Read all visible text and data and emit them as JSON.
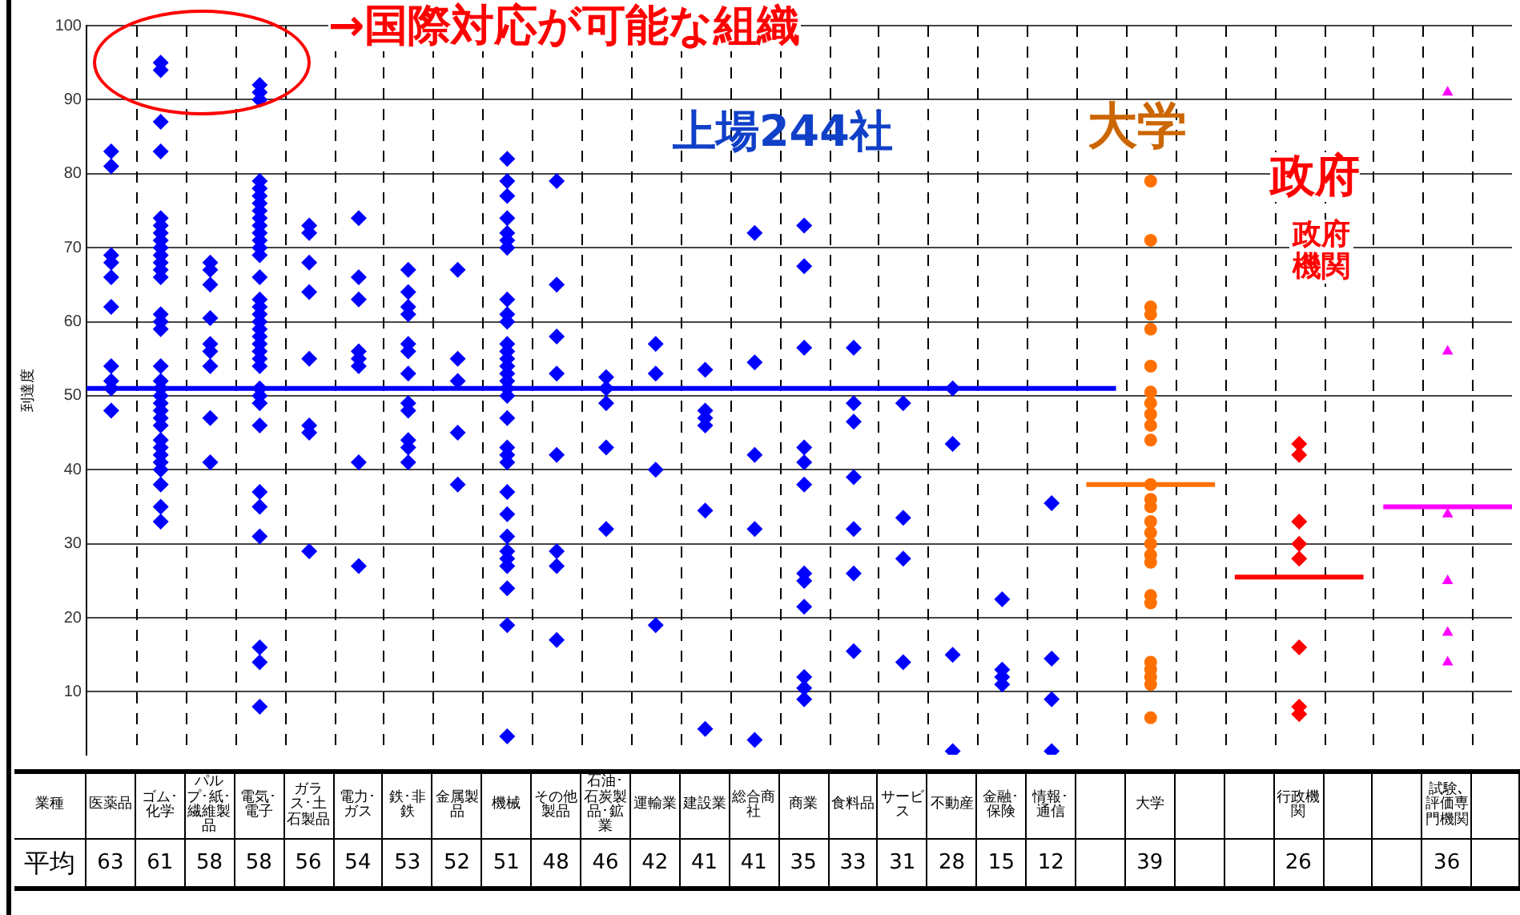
{
  "chart_data": [
    {
      "type": "scatter",
      "ylabel": "到達度",
      "tick_labels": "y",
      "categories": [
        "医薬品",
        "ゴム･化学",
        "パルプ･紙･繊維製品",
        "電気･電子",
        "ガラス･土石製品",
        "電力･ガス",
        "鉄･非鉄",
        "金属製品",
        "機械",
        "その他製品",
        "石油･石炭製品･鉱業",
        "運輸業",
        "建設業",
        "総合商社",
        "商業",
        "食料品",
        "サービス",
        "不動産",
        "金融･保険",
        "情報･通信",
        null,
        "大学",
        null,
        null,
        "行政機関",
        null,
        null,
        "試験､評価専門機関",
        null
      ],
      "ylim": [
        1.5,
        100
      ],
      "yticks": [
        10,
        20,
        30,
        40,
        50,
        60,
        70,
        80,
        90,
        100
      ],
      "grid": true,
      "legend": false,
      "series": [
        {
          "type": "scatter",
          "color": "#0000ff",
          "marker": "diamond",
          "x": [
            "医薬品",
            "医薬品",
            "医薬品",
            "医薬品",
            "医薬品",
            "医薬品",
            "医薬品",
            "医薬品",
            "医薬品",
            "医薬品"
          ],
          "values": [
            83,
            81,
            69,
            68,
            66,
            62,
            54,
            52,
            51,
            48
          ]
        },
        {
          "type": "scatter",
          "color": "#0000ff",
          "marker": "diamond",
          "x": [
            "ゴム･化学",
            "ゴム･化学",
            "ゴム･化学",
            "ゴム･化学",
            "ゴム･化学",
            "ゴム･化学",
            "ゴム･化学",
            "ゴム･化学",
            "ゴム･化学",
            "ゴム･化学",
            "ゴム･化学",
            "ゴム･化学",
            "ゴム･化学",
            "ゴム･化学",
            "ゴム･化学",
            "ゴム･化学",
            "ゴム･化学",
            "ゴム･化学",
            "ゴム･化学",
            "ゴム･化学",
            "ゴム･化学",
            "ゴム･化学",
            "ゴム･化学",
            "ゴム･化学",
            "ゴム･化学",
            "ゴム･化学",
            "ゴム･化学",
            "ゴム･化学",
            "ゴム･化学",
            "ゴム･化学",
            "ゴム･化学",
            "ゴム･化学"
          ],
          "values": [
            95,
            94,
            87,
            83,
            74,
            73,
            72,
            71,
            70,
            69,
            68,
            67,
            66,
            61,
            60,
            59,
            54,
            52,
            51,
            50,
            49,
            48,
            47,
            46,
            44,
            43,
            42,
            41,
            40,
            38,
            35,
            33
          ]
        },
        {
          "type": "scatter",
          "color": "#0000ff",
          "marker": "diamond",
          "x": [
            "パルプ･紙･繊維製品",
            "パルプ･紙･繊維製品",
            "パルプ･紙･繊維製品",
            "パルプ･紙･繊維製品",
            "パルプ･紙･繊維製品",
            "パルプ･紙･繊維製品",
            "パルプ･紙･繊維製品",
            "パルプ･紙･繊維製品",
            "パルプ･紙･繊維製品"
          ],
          "values": [
            68,
            67,
            65,
            60.5,
            57,
            56,
            54,
            47,
            41
          ]
        },
        {
          "type": "scatter",
          "color": "#0000ff",
          "marker": "diamond",
          "x": [
            "電気･電子",
            "電気･電子",
            "電気･電子",
            "電気･電子",
            "電気･電子",
            "電気･電子",
            "電気･電子",
            "電気･電子",
            "電気･電子",
            "電気･電子",
            "電気･電子",
            "電気･電子",
            "電気･電子",
            "電気･電子",
            "電気･電子",
            "電気･電子",
            "電気･電子",
            "電気･電子",
            "電気･電子",
            "電気･電子",
            "電気･電子",
            "電気･電子",
            "電気･電子",
            "電気･電子",
            "電気･電子",
            "電気･電子",
            "電気･電子",
            "電気･電子",
            "電気･電子",
            "電気･電子",
            "電気･電子",
            "電気･電子",
            "電気･電子",
            "電気･電子",
            "電気･電子"
          ],
          "values": [
            92,
            91,
            90,
            79,
            78,
            77,
            76,
            75,
            74,
            73,
            72,
            71,
            70,
            69,
            66,
            63,
            62,
            61,
            60,
            59,
            58,
            57,
            56,
            55,
            54,
            51,
            50,
            49,
            46,
            37,
            35,
            31,
            16,
            14,
            8
          ]
        },
        {
          "type": "scatter",
          "color": "#0000ff",
          "marker": "diamond",
          "x": [
            "ガラス･土石製品",
            "ガラス･土石製品",
            "ガラス･土石製品",
            "ガラス･土石製品",
            "ガラス･土石製品",
            "ガラス･土石製品",
            "ガラス･土石製品",
            "ガラス･土石製品"
          ],
          "values": [
            73,
            72,
            68,
            64,
            55,
            46,
            45,
            29
          ]
        },
        {
          "type": "scatter",
          "color": "#0000ff",
          "marker": "diamond",
          "x": [
            "電力･ガス",
            "電力･ガス",
            "電力･ガス",
            "電力･ガス",
            "電力･ガス",
            "電力･ガス",
            "電力･ガス",
            "電力･ガス"
          ],
          "values": [
            74,
            66,
            63,
            56,
            55,
            54,
            41,
            27
          ]
        },
        {
          "type": "scatter",
          "color": "#0000ff",
          "marker": "diamond",
          "x": [
            "鉄･非鉄",
            "鉄･非鉄",
            "鉄･非鉄",
            "鉄･非鉄",
            "鉄･非鉄",
            "鉄･非鉄",
            "鉄･非鉄",
            "鉄･非鉄",
            "鉄･非鉄",
            "鉄･非鉄",
            "鉄･非鉄",
            "鉄･非鉄"
          ],
          "values": [
            67,
            64,
            62,
            61,
            57,
            56,
            53,
            49,
            48,
            44,
            43,
            41
          ]
        },
        {
          "type": "scatter",
          "color": "#0000ff",
          "marker": "diamond",
          "x": [
            "金属製品",
            "金属製品",
            "金属製品",
            "金属製品",
            "金属製品"
          ],
          "values": [
            67,
            55,
            52,
            45,
            38
          ]
        },
        {
          "type": "scatter",
          "color": "#0000ff",
          "marker": "diamond",
          "x": [
            "機械",
            "機械",
            "機械",
            "機械",
            "機械",
            "機械",
            "機械",
            "機械",
            "機械",
            "機械",
            "機械",
            "機械",
            "機械",
            "機械",
            "機械",
            "機械",
            "機械",
            "機械",
            "機械",
            "機械",
            "機械",
            "機械",
            "機械",
            "機械",
            "機械",
            "機械",
            "機械",
            "機械",
            "機械",
            "機械",
            "機械"
          ],
          "values": [
            82,
            79,
            77,
            74,
            72,
            71,
            70,
            63,
            61,
            60,
            57,
            56,
            55,
            54,
            53,
            52,
            51,
            50,
            47,
            43,
            42,
            41,
            37,
            34,
            31,
            29,
            28,
            27,
            24,
            19,
            4
          ]
        },
        {
          "type": "scatter",
          "color": "#0000ff",
          "marker": "diamond",
          "x": [
            "その他製品",
            "その他製品",
            "その他製品",
            "その他製品",
            "その他製品",
            "その他製品",
            "その他製品",
            "その他製品",
            "その他製品"
          ],
          "values": [
            79,
            65,
            null,
            58,
            53,
            42,
            29,
            27,
            17
          ]
        },
        {
          "type": "scatter",
          "color": "#0000ff",
          "marker": "diamond",
          "x": [
            "石油･石炭製品･鉱業",
            "石油･石炭製品･鉱業",
            "石油･石炭製品･鉱業",
            "石油･石炭製品･鉱業",
            "石油･石炭製品･鉱業"
          ],
          "values": [
            52.5,
            51,
            49,
            43,
            32
          ]
        },
        {
          "type": "scatter",
          "color": "#0000ff",
          "marker": "diamond",
          "x": [
            "運輸業",
            "運輸業",
            "運輸業",
            "運輸業"
          ],
          "values": [
            57,
            53,
            40,
            19
          ]
        },
        {
          "type": "scatter",
          "color": "#0000ff",
          "marker": "diamond",
          "x": [
            "建設業",
            "建設業",
            "建設業",
            "建設業",
            "建設業",
            "建設業",
            "建設業"
          ],
          "values": [
            null,
            53.5,
            48,
            47,
            46,
            34.5,
            5
          ]
        },
        {
          "type": "scatter",
          "color": "#0000ff",
          "marker": "diamond",
          "x": [
            "総合商社",
            "総合商社",
            "総合商社",
            "総合商社",
            "総合商社"
          ],
          "values": [
            72,
            54.5,
            42,
            32,
            3.5
          ]
        },
        {
          "type": "scatter",
          "color": "#0000ff",
          "marker": "diamond",
          "x": [
            "商業",
            "商業",
            "商業",
            "商業",
            "商業",
            "商業",
            "商業",
            "商業",
            "商業",
            "商業",
            "商業",
            "商業"
          ],
          "values": [
            73,
            67.5,
            56.5,
            43,
            41,
            38,
            26,
            25,
            21.5,
            12,
            10.5,
            9
          ]
        },
        {
          "type": "scatter",
          "color": "#0000ff",
          "marker": "diamond",
          "x": [
            "食料品",
            "食料品",
            "食料品",
            "食料品",
            "食料品",
            "食料品",
            "食料品"
          ],
          "values": [
            56.5,
            49,
            46.5,
            39,
            32,
            26,
            15.5
          ]
        },
        {
          "type": "scatter",
          "color": "#0000ff",
          "marker": "diamond",
          "x": [
            "サービス",
            "サービス",
            "サービス",
            "サービス"
          ],
          "values": [
            49,
            33.5,
            28,
            14
          ]
        },
        {
          "type": "scatter",
          "color": "#0000ff",
          "marker": "diamond",
          "x": [
            "不動産",
            "不動産",
            "不動産",
            "不動産"
          ],
          "values": [
            51,
            43.5,
            15,
            2
          ]
        },
        {
          "type": "scatter",
          "color": "#0000ff",
          "marker": "diamond",
          "x": [
            "金融･保険",
            "金融･保険",
            "金融･保険",
            "金融･保険"
          ],
          "values": [
            22.5,
            13,
            12,
            11
          ]
        },
        {
          "type": "scatter",
          "color": "#0000ff",
          "marker": "diamond",
          "x": [
            "情報･通信",
            "情報･通信",
            "情報･通信",
            "情報･通信"
          ],
          "values": [
            35.5,
            14.5,
            9,
            2
          ]
        },
        {
          "type": "scatter",
          "color": "#ff7000",
          "marker": "circle",
          "x": [
            "大学",
            "大学",
            "大学",
            "大学",
            "大学",
            "大学",
            "大学",
            "大学",
            "大学",
            "大学",
            "大学",
            "大学",
            "大学",
            "大学",
            "大学",
            "大学",
            "大学",
            "大学",
            "大学",
            "大学",
            "大学",
            "大学",
            "大学",
            "大学",
            "大学",
            "大学"
          ],
          "values": [
            79,
            71,
            62,
            61,
            59,
            54,
            50.5,
            49,
            47.5,
            46,
            44,
            38,
            36,
            35,
            33,
            31.5,
            30,
            28.5,
            27.5,
            23,
            22,
            14,
            13,
            12,
            11,
            6.5
          ]
        },
        {
          "type": "scatter",
          "color": "#ff0000",
          "marker": "diamond",
          "x": [
            "行政機関",
            "行政機関",
            "行政機関",
            "行政機関",
            "行政機関",
            "行政機関",
            "行政機関",
            "行政機関"
          ],
          "values": [
            43.5,
            42,
            33,
            30,
            28,
            16,
            8,
            7
          ]
        },
        {
          "type": "scatter",
          "color": "#ff00ff",
          "marker": "triangle",
          "x": [
            "試験､評価専門機関",
            "試験､評価専門機関",
            "試験､評価専門機関",
            "試験､評価専門機関",
            "試験､評価専門機関",
            "試験､評価専門機関"
          ],
          "values": [
            91,
            56,
            34,
            25,
            18,
            14
          ]
        }
      ],
      "ref_lines": [
        {
          "axis": "y",
          "value": 51,
          "color": "#0000ff"
        },
        {
          "axis": "y",
          "value": 38,
          "color": "#ff7000"
        },
        {
          "axis": "y",
          "value": 25.5,
          "color": "#ff0000"
        },
        {
          "axis": "y",
          "value": 35,
          "color": "#ff00ff"
        }
      ],
      "annotations": [
        "→国際対応が可能な組織",
        "上場244社",
        "大学",
        "政府",
        "政府機関"
      ]
    },
    {
      "type": "other",
      "xlabel": "業種",
      "data_labels": true,
      "categories": [
        "医薬品",
        "ゴム･化学",
        "パルプ･紙･繊維製品",
        "電気･電子",
        "ガラス･土石製品",
        "電力･ガス",
        "鉄･非鉄",
        "金属製品",
        "機械",
        "その他製品",
        "石油･石炭製品･鉱業",
        "運輸業",
        "建設業",
        "総合商社",
        "商業",
        "食料品",
        "サービス",
        "不動産",
        "金融･保険",
        "情報･通信",
        null,
        "大学",
        null,
        null,
        "行政機関",
        null,
        null,
        "試験､評価専門機関",
        null
      ],
      "series": [
        {
          "name": "平均",
          "values": [
            63,
            61,
            58,
            58,
            56,
            54,
            53,
            52,
            51,
            48,
            46,
            42,
            41,
            41,
            35,
            33,
            31,
            28,
            15,
            12,
            null,
            39,
            null,
            null,
            26,
            null,
            null,
            36,
            null
          ]
        }
      ]
    }
  ]
}
